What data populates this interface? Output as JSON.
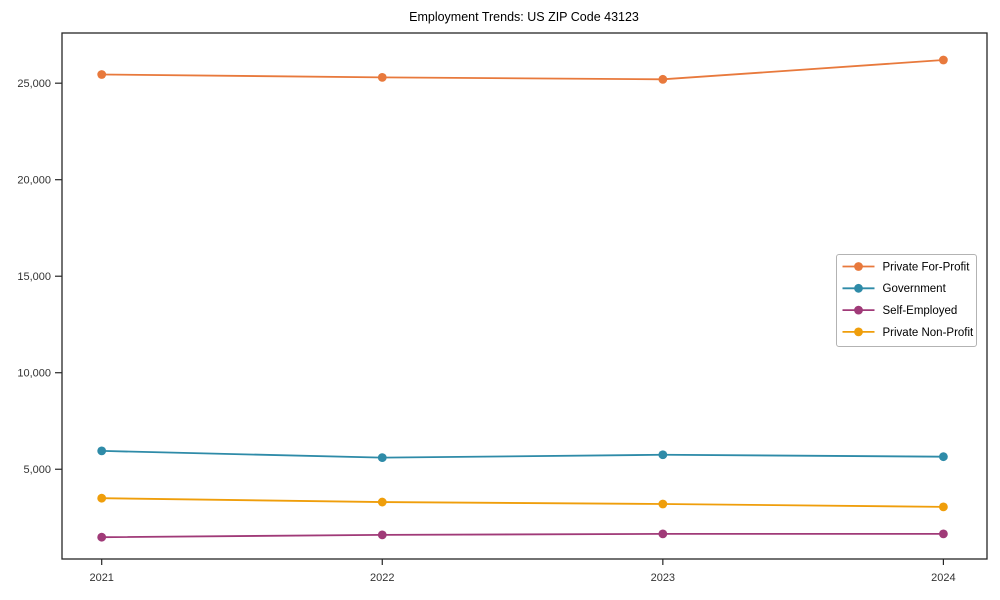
{
  "figure": {
    "title": "Employment Trends: US ZIP Code 43123"
  },
  "chart_data": {
    "type": "line",
    "title": "Employment Trends: US ZIP Code 43123",
    "xlabel": "",
    "ylabel": "",
    "x": [
      2021,
      2022,
      2023,
      2024
    ],
    "x_tick_labels": [
      "2021",
      "2022",
      "2023",
      "2024"
    ],
    "y_ticks": [
      5000,
      10000,
      15000,
      20000,
      25000
    ],
    "y_tick_labels": [
      "5,000",
      "10,000",
      "15,000",
      "20,000",
      "25,000"
    ],
    "ylim": [
      350,
      27600
    ],
    "grid": false,
    "legend_position": "center-right",
    "axis_color": "#262626",
    "tick_label_color": "#333333",
    "legend_border_color": "#b3b3b3",
    "series": [
      {
        "name": "Private For-Profit",
        "color": "#E8793C",
        "values": [
          25450,
          25300,
          25200,
          26200
        ]
      },
      {
        "name": "Government",
        "color": "#2E8BA8",
        "values": [
          5950,
          5600,
          5750,
          5650
        ]
      },
      {
        "name": "Self-Employed",
        "color": "#A03A78",
        "values": [
          1480,
          1600,
          1650,
          1650
        ]
      },
      {
        "name": "Private Non-Profit",
        "color": "#EF9E0B",
        "values": [
          3500,
          3300,
          3200,
          3050
        ]
      }
    ]
  }
}
